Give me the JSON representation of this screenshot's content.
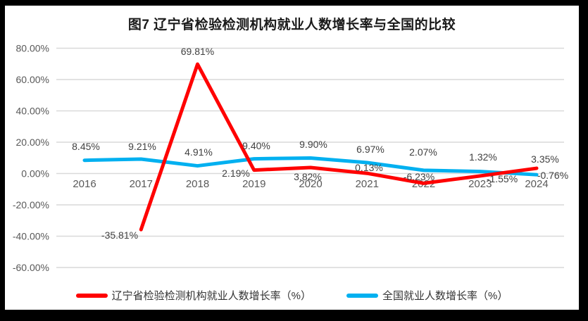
{
  "chart_data": {
    "type": "line",
    "title": "图7  辽宁省检验检测机构就业人数增长率与全国的比较",
    "categories": [
      "2016",
      "2017",
      "2018",
      "2019",
      "2020",
      "2021",
      "2022",
      "2023",
      "2024"
    ],
    "series": [
      {
        "name": "辽宁省检验检测机构就业人数增长率（%）",
        "color": "#ff0000",
        "values": [
          null,
          -35.81,
          69.81,
          2.19,
          3.82,
          0.13,
          -6.23,
          -1.55,
          3.35
        ],
        "labels": [
          "",
          "-35.81%",
          "69.81%",
          "2.19%",
          "3.82%",
          "0.13%",
          "-6.23%",
          "-1.55%",
          "3.35%"
        ]
      },
      {
        "name": "全国就业人数增长率（%）",
        "color": "#00b0f0",
        "values": [
          8.45,
          9.21,
          4.91,
          9.4,
          9.9,
          6.97,
          2.07,
          1.32,
          -0.76
        ],
        "labels": [
          "8.45%",
          "9.21%",
          "4.91%",
          "9.40%",
          "9.90%",
          "6.97%",
          "2.07%",
          "1.32%",
          "-0.76%"
        ]
      }
    ],
    "y_axis": {
      "tick_labels": [
        "80.00%",
        "60.00%",
        "40.00%",
        "20.00%",
        "0.00%",
        "-20.00%",
        "-40.00%",
        "-60.00%"
      ],
      "tick_values": [
        80,
        60,
        40,
        20,
        0,
        -20,
        -40,
        -60
      ],
      "min": -60,
      "max": 80
    },
    "grid": "horizontal-only",
    "legend_position": "bottom"
  },
  "colors": {
    "liaoning_series": "#ff0000",
    "national_series": "#00b0f0",
    "gridline": "#d9d9d9",
    "axis_text": "#595959",
    "data_label_text": "#404040",
    "title_text": "#1a1a1a",
    "frame": "#000000",
    "background": "#ffffff"
  }
}
